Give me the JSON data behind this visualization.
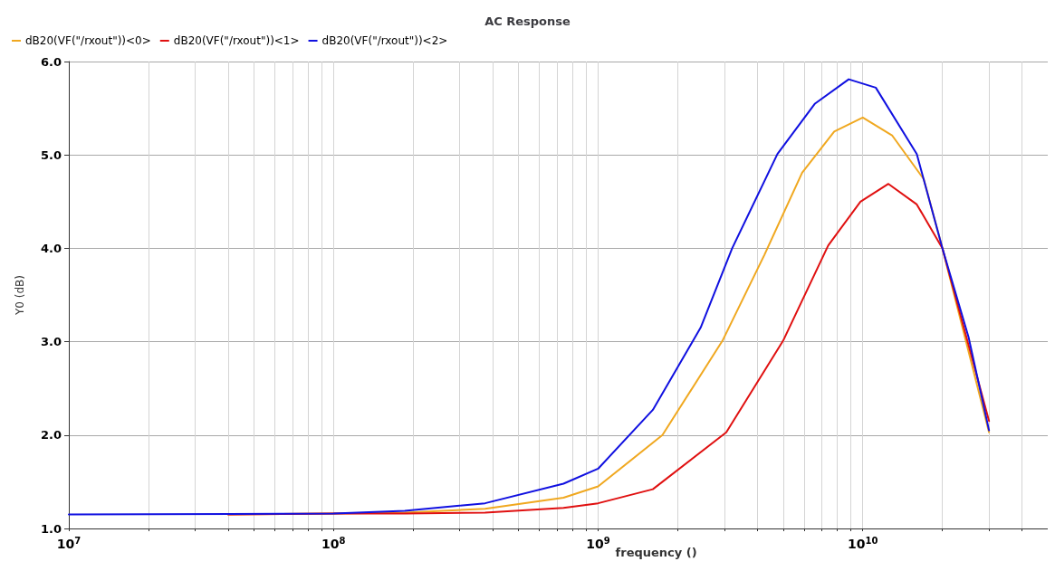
{
  "chart_data": {
    "type": "line",
    "title": "AC Response",
    "xlabel": "frequency ()",
    "ylabel": "Y0 (dB)",
    "log": "x",
    "grid": true,
    "legend": "top left",
    "marker": "none",
    "line_style": "solid",
    "xlim": [
      10000000,
      50000000000
    ],
    "ylim": [
      1,
      6
    ],
    "xticks": [
      {
        "value": 10000000,
        "label": "10$^{7}$"
      },
      {
        "value": 20000000,
        "label": null
      },
      {
        "value": 30000000,
        "label": null
      },
      {
        "value": 40000000,
        "label": null
      },
      {
        "value": 50000000,
        "label": null
      },
      {
        "value": 60000000,
        "label": null
      },
      {
        "value": 70000000,
        "label": null
      },
      {
        "value": 80000000,
        "label": null
      },
      {
        "value": 90000000,
        "label": null
      },
      {
        "value": 100000000,
        "label": "10$^{8}$"
      },
      {
        "value": 200000000,
        "label": null
      },
      {
        "value": 300000000,
        "label": null
      },
      {
        "value": 400000000,
        "label": null
      },
      {
        "value": 500000000,
        "label": null
      },
      {
        "value": 600000000,
        "label": null
      },
      {
        "value": 700000000,
        "label": null
      },
      {
        "value": 800000000,
        "label": null
      },
      {
        "value": 900000000,
        "label": null
      },
      {
        "value": 1000000000,
        "label": "10$^{9}$"
      },
      {
        "value": 2000000000,
        "label": null
      },
      {
        "value": 3000000000,
        "label": null
      },
      {
        "value": 4000000000,
        "label": null
      },
      {
        "value": 5000000000,
        "label": null
      },
      {
        "value": 6000000000,
        "label": null
      },
      {
        "value": 7000000000,
        "label": null
      },
      {
        "value": 8000000000,
        "label": null
      },
      {
        "value": 9000000000,
        "label": null
      },
      {
        "value": 10000000000,
        "label": "10$^{10}$"
      },
      {
        "value": 20000000000,
        "label": null
      },
      {
        "value": 30000000000,
        "label": null
      },
      {
        "value": 40000000000,
        "label": null
      }
    ],
    "yticks": [
      {
        "value": 1,
        "label": "1.0"
      },
      {
        "value": 2,
        "label": "2.0"
      },
      {
        "value": 3,
        "label": "3.0"
      },
      {
        "value": 4,
        "label": "4.0"
      },
      {
        "value": 5,
        "label": "5.0"
      },
      {
        "value": 6,
        "label": "6.0"
      }
    ],
    "series": [
      {
        "name": "dB20(VF(\"/rxout\"))<0>",
        "color": "#f0a820",
        "x": [
          40000000,
          100000000,
          186000000,
          374000000,
          740000000,
          1000000000,
          1750000000,
          2950000000,
          4250000000,
          5900000000,
          7800000000,
          10000000000,
          12900000000,
          17000000000,
          20000000000,
          30000000000
        ],
        "values": [
          1.15,
          1.16,
          1.17,
          1.21,
          1.33,
          1.45,
          2.0,
          3.01,
          3.93,
          4.81,
          5.25,
          5.4,
          5.21,
          4.74,
          4.0,
          2.03
        ]
      },
      {
        "name": "dB20(VF(\"/rxout\"))<1>",
        "color": "#e01010",
        "x": [
          40000000,
          100000000,
          186000000,
          374000000,
          740000000,
          1000000000,
          1610000000,
          3050000000,
          5000000000,
          7400000000,
          9800000000,
          12500000000,
          16000000000,
          20000000000,
          30000000000
        ],
        "values": [
          1.15,
          1.16,
          1.16,
          1.17,
          1.22,
          1.27,
          1.42,
          2.03,
          3.01,
          4.03,
          4.5,
          4.69,
          4.47,
          4.0,
          2.15
        ]
      },
      {
        "name": "dB20(VF(\"/rxout\"))<2>",
        "color": "#1010e0",
        "x": [
          10000000,
          100000000,
          186000000,
          374000000,
          740000000,
          1000000000,
          1610000000,
          2440000000,
          3210000000,
          4760000000,
          6600000000,
          8850000000,
          11200000000,
          16000000000,
          20000000000,
          25100000000,
          30000000000
        ],
        "values": [
          1.15,
          1.16,
          1.19,
          1.27,
          1.48,
          1.64,
          2.27,
          3.15,
          4.0,
          5.01,
          5.55,
          5.81,
          5.72,
          5.01,
          4.0,
          3.05,
          2.05
        ]
      }
    ]
  }
}
